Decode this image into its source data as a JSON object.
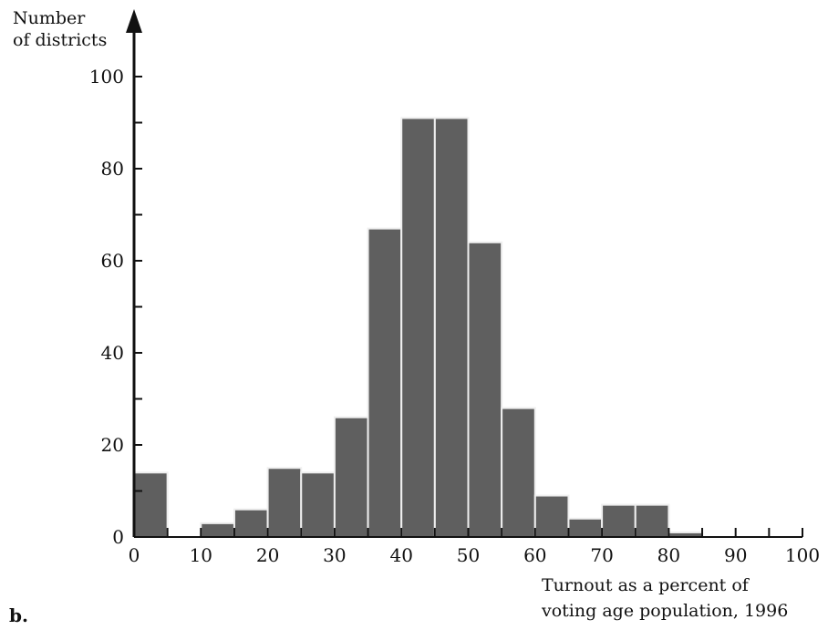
{
  "panel_label": "b.",
  "colors": {
    "bar_fill": "#5f5f5f",
    "bar_stroke": "#efefef",
    "axis": "#111111",
    "text": "#111111"
  },
  "chart_data": {
    "type": "bar",
    "title": "",
    "ylabel_lines": [
      "Number",
      "of districts"
    ],
    "xlabel_lines": [
      "Turnout as a percent of",
      "voting age population, 1996"
    ],
    "bin_width": 5,
    "bins": [
      {
        "start": 0,
        "end": 5,
        "value": 14
      },
      {
        "start": 5,
        "end": 10,
        "value": 0
      },
      {
        "start": 10,
        "end": 15,
        "value": 3
      },
      {
        "start": 15,
        "end": 20,
        "value": 6
      },
      {
        "start": 20,
        "end": 25,
        "value": 15
      },
      {
        "start": 25,
        "end": 30,
        "value": 14
      },
      {
        "start": 30,
        "end": 35,
        "value": 26
      },
      {
        "start": 35,
        "end": 40,
        "value": 67
      },
      {
        "start": 40,
        "end": 45,
        "value": 91
      },
      {
        "start": 45,
        "end": 50,
        "value": 91
      },
      {
        "start": 50,
        "end": 55,
        "value": 64
      },
      {
        "start": 55,
        "end": 60,
        "value": 28
      },
      {
        "start": 60,
        "end": 65,
        "value": 9
      },
      {
        "start": 65,
        "end": 70,
        "value": 4
      },
      {
        "start": 70,
        "end": 75,
        "value": 7
      },
      {
        "start": 75,
        "end": 80,
        "value": 7
      },
      {
        "start": 80,
        "end": 85,
        "value": 1
      },
      {
        "start": 85,
        "end": 90,
        "value": 0
      },
      {
        "start": 90,
        "end": 95,
        "value": 0
      },
      {
        "start": 95,
        "end": 100,
        "value": 0
      }
    ],
    "xlim": [
      0,
      100
    ],
    "ylim": [
      0,
      100
    ],
    "x_ticks": [
      0,
      10,
      20,
      30,
      40,
      50,
      60,
      70,
      80,
      90,
      100
    ],
    "x_tick_labels": [
      "0",
      "10",
      "20",
      "30",
      "40",
      "50",
      "60",
      "70",
      "80",
      "90",
      "100"
    ],
    "x_minor_ticks": [
      5,
      15,
      25,
      35,
      45,
      55,
      65,
      75,
      85,
      95
    ],
    "y_ticks": [
      0,
      20,
      40,
      60,
      80,
      100
    ],
    "y_tick_labels": [
      "0",
      "20",
      "40",
      "60",
      "80",
      "100"
    ],
    "y_minor_ticks": [
      10,
      30,
      50,
      70,
      90
    ],
    "grid": false,
    "legend": "none"
  }
}
